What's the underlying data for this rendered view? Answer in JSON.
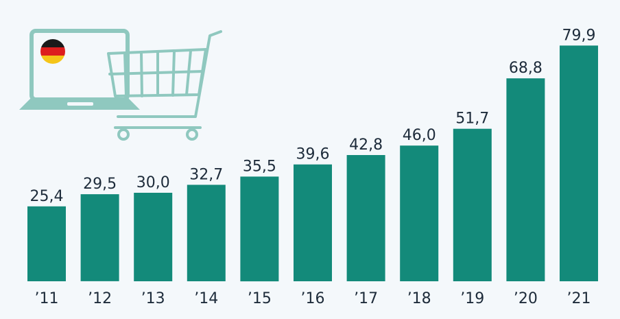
{
  "chart_data": {
    "type": "bar",
    "title": "",
    "xlabel": "",
    "ylabel": "",
    "categories": [
      "’11",
      "’12",
      "’13",
      "’14",
      "’15",
      "’16",
      "’17",
      "’18",
      "’19",
      "’20",
      "’21"
    ],
    "values": [
      25.4,
      29.5,
      30.0,
      32.7,
      35.5,
      39.6,
      42.8,
      46.0,
      51.7,
      68.8,
      79.9
    ],
    "value_labels": [
      "25,4",
      "29,5",
      "30,0",
      "32,7",
      "35,5",
      "39,6",
      "42,8",
      "46,0",
      "51,7",
      "68,8",
      "79,9"
    ],
    "ylim": [
      0,
      80
    ],
    "grid": false,
    "bar_color": "#138a7a"
  },
  "illustration": {
    "icons": [
      "laptop-icon",
      "germany-flag-icon",
      "shopping-cart-icon"
    ],
    "icon_color": "#8fc8bf",
    "flag_colors": [
      "#1a1a1a",
      "#dd1e1e",
      "#f5c518"
    ]
  }
}
